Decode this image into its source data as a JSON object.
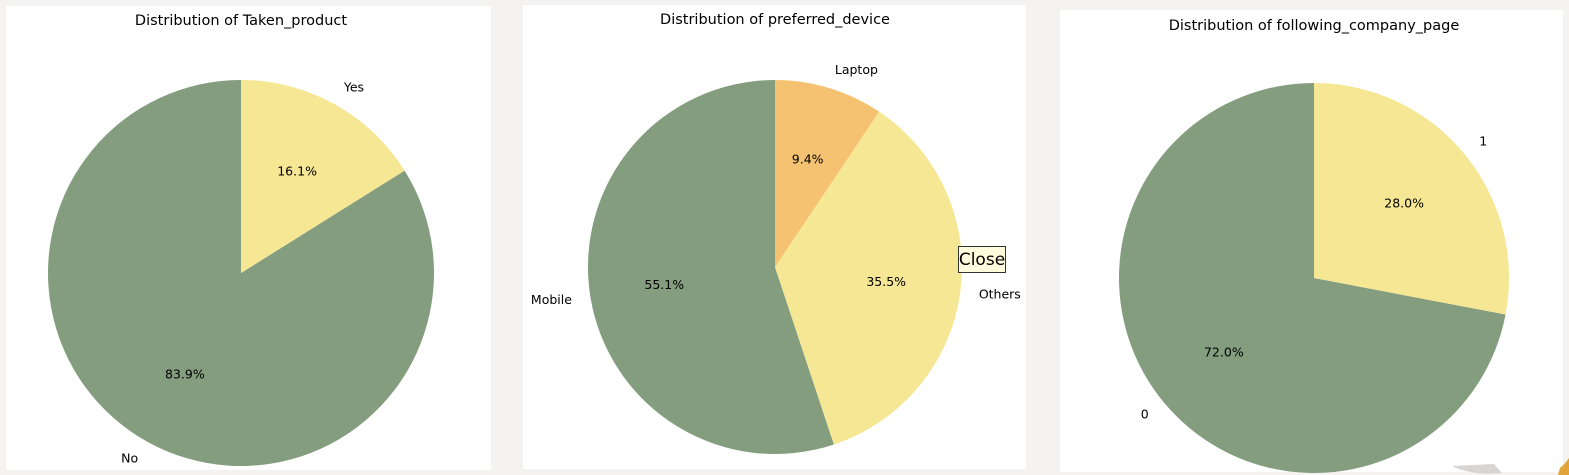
{
  "chart_data": [
    {
      "type": "pie",
      "title": "Distribution of Taken_product",
      "categories": [
        "No",
        "Yes"
      ],
      "values": [
        83.9,
        16.1
      ],
      "value_labels": [
        "83.9%",
        "16.1%"
      ],
      "colors": [
        "#839d7e",
        "#f5e794"
      ]
    },
    {
      "type": "pie",
      "title": "Distribution of preferred_device",
      "categories": [
        "Mobile",
        "Others",
        "Laptop"
      ],
      "values": [
        55.1,
        35.5,
        9.4
      ],
      "value_labels": [
        "55.1%",
        "35.5%",
        "9.4%"
      ],
      "colors": [
        "#839d7e",
        "#f5e794",
        "#f5c272"
      ]
    },
    {
      "type": "pie",
      "title": "Distribution of following_company_page",
      "categories": [
        "0",
        "1"
      ],
      "values": [
        72.0,
        28.0
      ],
      "value_labels": [
        "72.0%",
        "28.0%"
      ],
      "colors": [
        "#839d7e",
        "#f5e794"
      ]
    }
  ],
  "overlay": {
    "close_label": "Close"
  }
}
